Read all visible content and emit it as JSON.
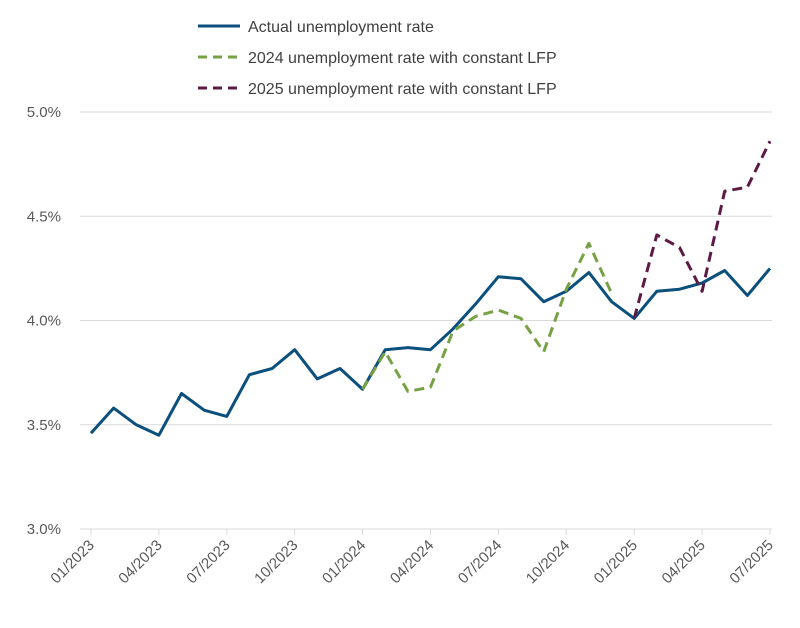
{
  "chart_data": {
    "type": "line",
    "x": [
      "01/2023",
      "02/2023",
      "03/2023",
      "04/2023",
      "05/2023",
      "06/2023",
      "07/2023",
      "08/2023",
      "09/2023",
      "10/2023",
      "11/2023",
      "12/2023",
      "01/2024",
      "02/2024",
      "03/2024",
      "04/2024",
      "05/2024",
      "06/2024",
      "07/2024",
      "08/2024",
      "09/2024",
      "10/2024",
      "11/2024",
      "12/2024",
      "01/2025",
      "02/2025",
      "03/2025",
      "04/2025",
      "05/2025",
      "06/2025",
      "07/2025"
    ],
    "x_tick_labels": [
      "01/2023",
      "04/2023",
      "07/2023",
      "10/2023",
      "01/2024",
      "04/2024",
      "07/2024",
      "10/2024",
      "01/2025",
      "04/2025",
      "07/2025"
    ],
    "series": [
      {
        "name": "Actual unemployment rate",
        "color": "#0b4f7c",
        "dash": "solid",
        "values": [
          3.46,
          3.58,
          3.5,
          3.45,
          3.65,
          3.57,
          3.54,
          3.74,
          3.77,
          3.86,
          3.72,
          3.77,
          3.67,
          3.86,
          3.87,
          3.86,
          3.96,
          4.08,
          4.21,
          4.2,
          4.09,
          4.14,
          4.23,
          4.09,
          4.01,
          4.14,
          4.15,
          4.18,
          4.24,
          4.12,
          4.25
        ]
      },
      {
        "name": "2024 unemployment rate with constant LFP",
        "color": "#77a145",
        "dash": "dashed",
        "values": [
          null,
          null,
          null,
          null,
          null,
          null,
          null,
          null,
          null,
          null,
          null,
          null,
          3.67,
          3.85,
          3.66,
          3.68,
          3.95,
          4.02,
          4.05,
          4.01,
          3.85,
          4.15,
          4.37,
          4.13,
          null,
          null,
          null,
          null,
          null,
          null,
          null
        ]
      },
      {
        "name": "2025 unemployment rate with constant LFP",
        "color": "#5c1a45",
        "dash": "dashed",
        "values": [
          null,
          null,
          null,
          null,
          null,
          null,
          null,
          null,
          null,
          null,
          null,
          null,
          null,
          null,
          null,
          null,
          null,
          null,
          null,
          null,
          null,
          null,
          null,
          null,
          4.01,
          4.41,
          4.35,
          4.14,
          4.62,
          4.64,
          4.86
        ]
      }
    ],
    "y_ticks": [
      "3.0%",
      "3.5%",
      "4.0%",
      "4.5%",
      "5.0%"
    ],
    "y_tick_values": [
      3.0,
      3.5,
      4.0,
      4.5,
      5.0
    ],
    "ylim": [
      3.0,
      5.0
    ],
    "grid": true,
    "legend_position": "top-center",
    "title": "",
    "xlabel": "",
    "ylabel": ""
  }
}
